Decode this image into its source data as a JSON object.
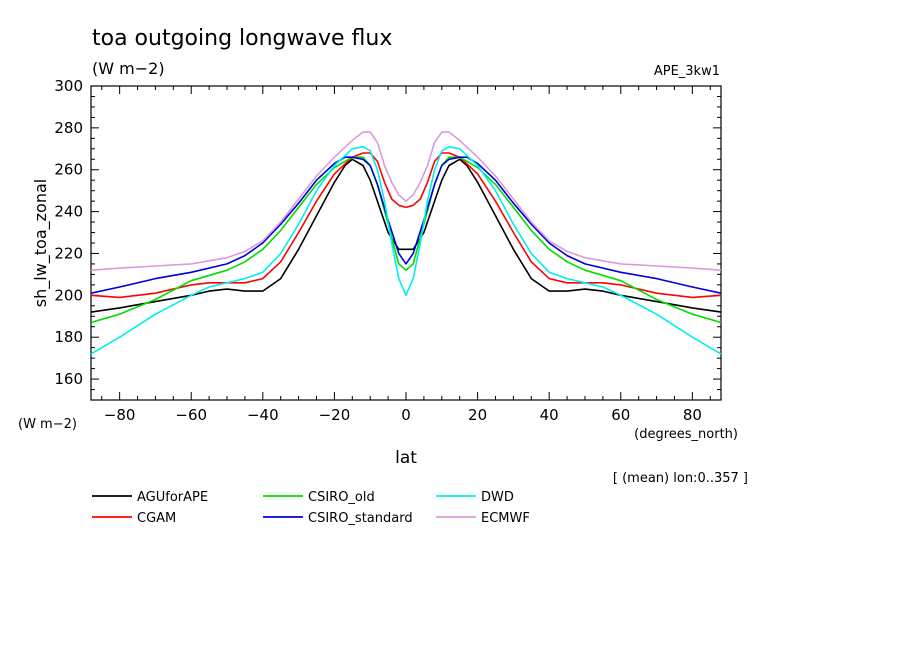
{
  "chart_data": {
    "type": "line",
    "title": "toa outgoing longwave flux",
    "subtitle": "(W m−2)",
    "experiment": "APE_3kw1",
    "xlabel": "lat",
    "x_units": "(degrees_north)",
    "ylabel": "sh_lw_toa_zonal",
    "y_units": "(W m−2)",
    "note": "[ (mean) lon:0..357 ]",
    "xlim": [
      -88,
      88
    ],
    "ylim": [
      150,
      300
    ],
    "xticks": [
      -80,
      -60,
      -40,
      -20,
      0,
      20,
      40,
      60,
      80
    ],
    "yticks": [
      160,
      180,
      200,
      220,
      240,
      260,
      280,
      300
    ],
    "grid": false,
    "legend_position": "bottom",
    "series": [
      {
        "name": "AGUforAPE",
        "color": "#000000",
        "x": [
          -88,
          -80,
          -70,
          -60,
          -55,
          -50,
          -45,
          -40,
          -35,
          -30,
          -25,
          -20,
          -17,
          -15,
          -12,
          -10,
          -8,
          -5,
          -2,
          0,
          2,
          5,
          8,
          10,
          12,
          15,
          17,
          20,
          25,
          30,
          35,
          40,
          45,
          50,
          55,
          60,
          70,
          80,
          88
        ],
        "y": [
          192,
          194,
          197,
          200,
          202,
          203,
          202,
          202,
          208,
          222,
          238,
          254,
          262,
          265,
          262,
          255,
          245,
          230,
          222,
          222,
          222,
          230,
          245,
          255,
          262,
          265,
          262,
          254,
          238,
          222,
          208,
          202,
          202,
          203,
          202,
          200,
          197,
          194,
          192
        ]
      },
      {
        "name": "CGAM",
        "color": "#ff0000",
        "x": [
          -88,
          -80,
          -70,
          -60,
          -55,
          -50,
          -45,
          -40,
          -35,
          -30,
          -25,
          -20,
          -15,
          -12,
          -10,
          -8,
          -6,
          -4,
          -2,
          0,
          2,
          4,
          6,
          8,
          10,
          12,
          15,
          20,
          25,
          30,
          35,
          40,
          45,
          50,
          55,
          60,
          70,
          80,
          88
        ],
        "y": [
          200,
          199,
          201,
          205,
          206,
          206,
          206,
          208,
          216,
          230,
          245,
          258,
          266,
          268,
          268,
          264,
          254,
          246,
          243,
          242,
          243,
          246,
          254,
          264,
          268,
          268,
          266,
          258,
          245,
          230,
          216,
          208,
          206,
          206,
          206,
          205,
          201,
          199,
          200
        ]
      },
      {
        "name": "CSIRO_old",
        "color": "#00dd00",
        "x": [
          -88,
          -80,
          -70,
          -60,
          -50,
          -45,
          -40,
          -35,
          -30,
          -25,
          -20,
          -15,
          -12,
          -10,
          -8,
          -5,
          -2,
          0,
          2,
          5,
          8,
          10,
          12,
          15,
          20,
          25,
          30,
          35,
          40,
          45,
          50,
          60,
          70,
          80,
          88
        ],
        "y": [
          187,
          191,
          198,
          207,
          212,
          216,
          222,
          231,
          242,
          253,
          261,
          266,
          266,
          262,
          253,
          234,
          215,
          212,
          215,
          234,
          253,
          262,
          266,
          266,
          261,
          253,
          242,
          231,
          222,
          216,
          212,
          207,
          198,
          191,
          187
        ]
      },
      {
        "name": "CSIRO_standard",
        "color": "#0000dd",
        "x": [
          -88,
          -80,
          -70,
          -60,
          -50,
          -45,
          -40,
          -35,
          -30,
          -25,
          -20,
          -17,
          -15,
          -12,
          -10,
          -8,
          -5,
          -2,
          0,
          2,
          5,
          8,
          10,
          12,
          15,
          17,
          20,
          25,
          30,
          35,
          40,
          45,
          50,
          60,
          70,
          80,
          88
        ],
        "y": [
          201,
          204,
          208,
          211,
          215,
          219,
          225,
          234,
          244,
          255,
          263,
          266,
          266,
          265,
          262,
          253,
          236,
          220,
          215,
          220,
          236,
          253,
          262,
          265,
          266,
          266,
          263,
          255,
          244,
          234,
          225,
          219,
          215,
          211,
          208,
          204,
          201
        ]
      },
      {
        "name": "DWD",
        "color": "#00eeee",
        "x": [
          -88,
          -80,
          -70,
          -60,
          -55,
          -50,
          -45,
          -40,
          -35,
          -30,
          -25,
          -20,
          -15,
          -12,
          -10,
          -8,
          -6,
          -4,
          -2,
          0,
          2,
          4,
          6,
          8,
          10,
          12,
          15,
          20,
          25,
          30,
          35,
          40,
          45,
          50,
          55,
          60,
          70,
          80,
          88
        ],
        "y": [
          172,
          180,
          191,
          200,
          204,
          206,
          208,
          211,
          220,
          234,
          250,
          262,
          270,
          271,
          269,
          260,
          245,
          225,
          208,
          200,
          208,
          225,
          245,
          260,
          269,
          271,
          270,
          262,
          250,
          234,
          220,
          211,
          208,
          206,
          204,
          200,
          191,
          180,
          172
        ]
      },
      {
        "name": "ECMWF",
        "color": "#dd99dd",
        "x": [
          -88,
          -80,
          -70,
          -60,
          -50,
          -45,
          -40,
          -35,
          -30,
          -25,
          -20,
          -15,
          -12,
          -10,
          -8,
          -6,
          -4,
          -2,
          0,
          2,
          4,
          6,
          8,
          10,
          12,
          15,
          20,
          25,
          30,
          35,
          40,
          45,
          50,
          60,
          70,
          80,
          88
        ],
        "y": [
          212,
          213,
          214,
          215,
          218,
          221,
          226,
          235,
          246,
          257,
          266,
          274,
          278,
          278,
          273,
          262,
          254,
          248,
          245,
          248,
          254,
          262,
          273,
          278,
          278,
          274,
          266,
          257,
          246,
          235,
          226,
          221,
          218,
          215,
          214,
          213,
          212
        ]
      }
    ]
  }
}
